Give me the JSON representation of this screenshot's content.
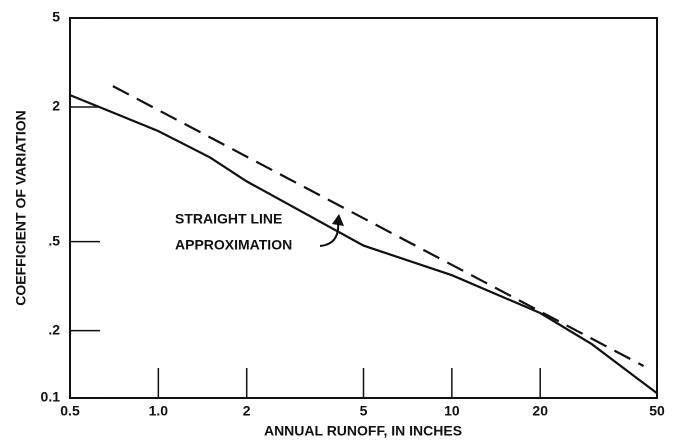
{
  "chart_data": {
    "type": "line",
    "xlabel": "ANNUAL RUNOFF, IN INCHES",
    "ylabel": "COEFFICIENT OF VARIATION",
    "annotation": [
      "STRAIGHT LINE",
      "APPROXIMATION"
    ],
    "xscale": "log",
    "yscale": "log",
    "xlim": [
      0.5,
      50
    ],
    "ylim": [
      0.1,
      5
    ],
    "xticks": [
      0.5,
      {
        "value": 1,
        "label": "1.0"
      },
      2,
      5,
      10,
      20,
      50
    ],
    "yticks": [
      0.1,
      {
        "value": 0.2,
        "label": ".2"
      },
      {
        "value": 0.5,
        "label": ".5"
      },
      2,
      5
    ],
    "series": [
      {
        "color": "#111111",
        "style": "solid",
        "x": [
          0.5,
          1,
          1.5,
          2,
          5,
          10,
          20,
          30,
          50
        ],
        "values": [
          2.26,
          1.56,
          1.19,
          0.93,
          0.48,
          0.354,
          0.24,
          0.174,
          0.105
        ]
      },
      {
        "color": "#111111",
        "style": "dashed",
        "x": [
          0.7,
          45
        ],
        "values": [
          2.48,
          0.139
        ]
      }
    ]
  }
}
